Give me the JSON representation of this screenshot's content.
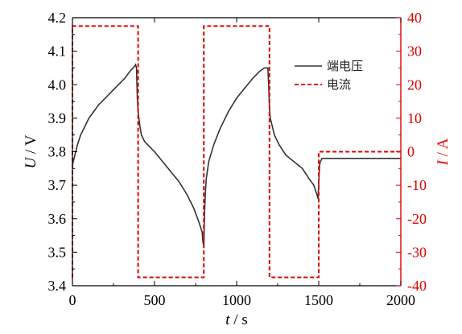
{
  "chart_data": {
    "type": "line",
    "xlabel": {
      "var": "t",
      "unit": "s"
    },
    "y_left_label": {
      "var": "U",
      "unit": "V"
    },
    "y_right_label": {
      "var": "I",
      "unit": "A"
    },
    "xlim": [
      0,
      2000
    ],
    "x_ticks": [
      0,
      500,
      1000,
      1500,
      2000
    ],
    "y_left_lim": [
      3.4,
      4.2
    ],
    "y_left_ticks": [
      3.4,
      3.5,
      3.6,
      3.7,
      3.8,
      3.9,
      4.0,
      4.1,
      4.2
    ],
    "y_right_lim": [
      -40,
      40
    ],
    "y_right_ticks": [
      -40,
      -30,
      -20,
      -10,
      0,
      10,
      20,
      30,
      40
    ],
    "grid": false,
    "legend_position": "top-right",
    "colors": {
      "voltage": "#333333",
      "current": "#e00000",
      "right_axis": "#e00000",
      "left_axis": "#000000"
    },
    "series": [
      {
        "name": "端电压",
        "axis": "left",
        "style": "solid",
        "x": [
          0,
          5,
          10,
          20,
          30,
          50,
          70,
          100,
          130,
          160,
          200,
          240,
          280,
          320,
          350,
          370,
          385,
          390,
          395,
          400,
          405,
          410,
          420,
          440,
          460,
          500,
          550,
          600,
          650,
          700,
          740,
          770,
          790,
          795,
          800,
          805,
          810,
          815,
          830,
          860,
          900,
          950,
          1000,
          1050,
          1100,
          1140,
          1170,
          1190,
          1195,
          1200,
          1205,
          1215,
          1230,
          1260,
          1300,
          1350,
          1400,
          1440,
          1470,
          1490,
          1495,
          1500,
          1505,
          1510,
          1520,
          1550,
          1600,
          1700,
          1800,
          1900,
          2000
        ],
        "values": [
          3.76,
          3.77,
          3.78,
          3.8,
          3.82,
          3.85,
          3.87,
          3.9,
          3.92,
          3.94,
          3.96,
          3.98,
          4.0,
          4.02,
          4.04,
          4.05,
          4.06,
          4.05,
          3.96,
          3.92,
          3.9,
          3.88,
          3.85,
          3.83,
          3.82,
          3.8,
          3.77,
          3.74,
          3.71,
          3.67,
          3.63,
          3.59,
          3.56,
          3.53,
          3.52,
          3.62,
          3.68,
          3.72,
          3.77,
          3.82,
          3.87,
          3.92,
          3.96,
          3.99,
          4.02,
          4.04,
          4.05,
          4.05,
          4.0,
          3.93,
          3.9,
          3.88,
          3.85,
          3.82,
          3.79,
          3.77,
          3.75,
          3.72,
          3.7,
          3.67,
          3.66,
          3.7,
          3.76,
          3.77,
          3.78,
          3.78,
          3.78,
          3.78,
          3.78,
          3.78,
          3.78
        ]
      },
      {
        "name": "电流",
        "axis": "right",
        "style": "dashed",
        "x": [
          0,
          0,
          400,
          400,
          800,
          800,
          1200,
          1200,
          1500,
          1500,
          2000
        ],
        "values": [
          -37.5,
          37.5,
          37.5,
          -37.5,
          -37.5,
          37.5,
          37.5,
          -37.5,
          -37.5,
          0,
          0
        ]
      }
    ]
  }
}
